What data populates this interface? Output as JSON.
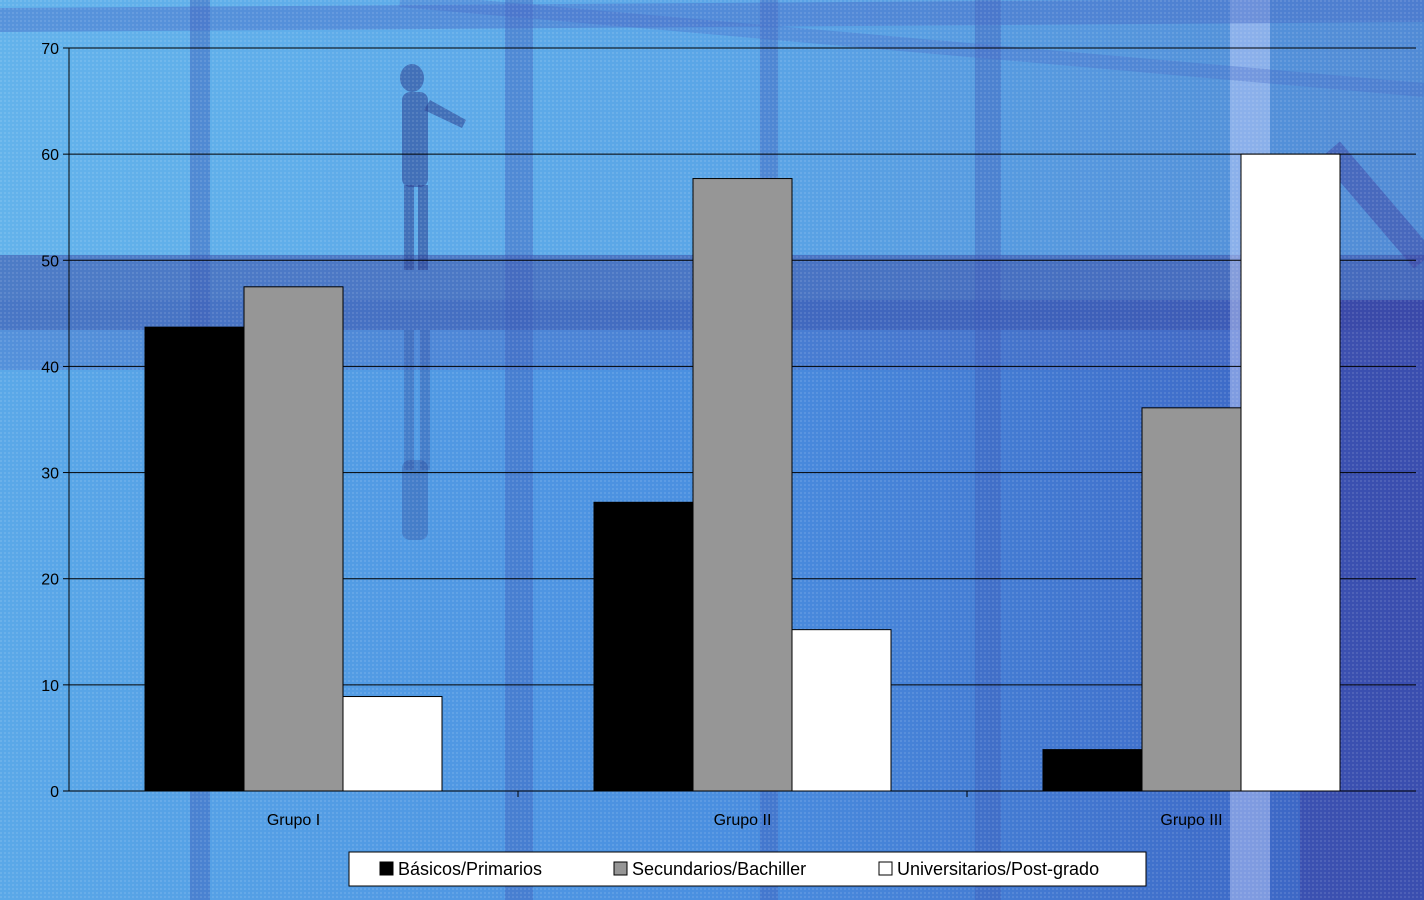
{
  "chart_data": {
    "type": "bar",
    "title": "",
    "xlabel": "",
    "ylabel": "",
    "categories": [
      "Grupo I",
      "Grupo II",
      "Grupo III"
    ],
    "series": [
      {
        "name": "Básicos/Primarios",
        "color": "#000000",
        "values": [
          43.7,
          27.2,
          3.9
        ]
      },
      {
        "name": "Secundarios/Bachiller",
        "color": "#969696",
        "values": [
          47.5,
          57.7,
          36.1
        ]
      },
      {
        "name": "Universitarios/Post-grado",
        "color": "#FFFFFF",
        "values": [
          8.9,
          15.2,
          60.0
        ]
      }
    ],
    "ylim": [
      0,
      70
    ],
    "yticks": [
      0,
      10,
      20,
      30,
      40,
      50,
      60,
      70
    ],
    "grid": true,
    "legend_position": "bottom"
  }
}
